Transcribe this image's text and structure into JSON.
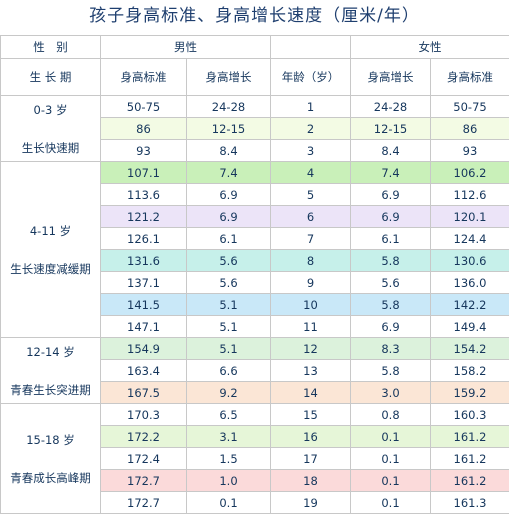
{
  "title": "孩子身高标准、身高增长速度（厘米/年）",
  "header": {
    "gender_label": "性　别",
    "male": "男性",
    "female": "女性",
    "period_label": "生 长 期",
    "columns": [
      "身高标准",
      "身高增长",
      "年龄（岁）",
      "身高增长",
      "身高标准"
    ]
  },
  "groups": [
    {
      "age": "0-3 岁",
      "stage": "生长快速期",
      "rows": [
        [
          "50-75",
          "24-28",
          "1",
          "24-28",
          "50-75"
        ],
        [
          "86",
          "12-15",
          "2",
          "12-15",
          "86"
        ],
        [
          "93",
          "8.4",
          "3",
          "8.4",
          "93"
        ]
      ]
    },
    {
      "age": "4-11 岁",
      "stage": "生长速度减缓期",
      "rows": [
        [
          "107.1",
          "7.4",
          "4",
          "7.4",
          "106.2"
        ],
        [
          "113.6",
          "6.9",
          "5",
          "6.9",
          "112.6"
        ],
        [
          "121.2",
          "6.9",
          "6",
          "6.9",
          "120.1"
        ],
        [
          "126.1",
          "6.1",
          "7",
          "6.1",
          "124.4"
        ],
        [
          "131.6",
          "5.6",
          "8",
          "5.8",
          "130.6"
        ],
        [
          "137.1",
          "5.6",
          "9",
          "5.6",
          "136.0"
        ],
        [
          "141.5",
          "5.1",
          "10",
          "5.8",
          "142.2"
        ],
        [
          "147.1",
          "5.1",
          "11",
          "6.9",
          "149.4"
        ]
      ]
    },
    {
      "age": "12-14 岁",
      "stage": "青春生长突进期",
      "rows": [
        [
          "154.9",
          "5.1",
          "12",
          "8.3",
          "154.2"
        ],
        [
          "163.4",
          "6.6",
          "13",
          "5.8",
          "158.2"
        ],
        [
          "167.5",
          "9.2",
          "14",
          "3.0",
          "159.2"
        ]
      ]
    },
    {
      "age": "15-18 岁",
      "stage": "青春成长高峰期",
      "rows": [
        [
          "170.3",
          "6.5",
          "15",
          "0.8",
          "160.3"
        ],
        [
          "172.2",
          "3.1",
          "16",
          "0.1",
          "161.2"
        ],
        [
          "172.4",
          "1.5",
          "17",
          "0.1",
          "161.2"
        ],
        [
          "172.7",
          "1.0",
          "18",
          "0.1",
          "161.2"
        ],
        [
          "172.7",
          "0.1",
          "19",
          "0.1",
          "161.3"
        ]
      ]
    }
  ]
}
